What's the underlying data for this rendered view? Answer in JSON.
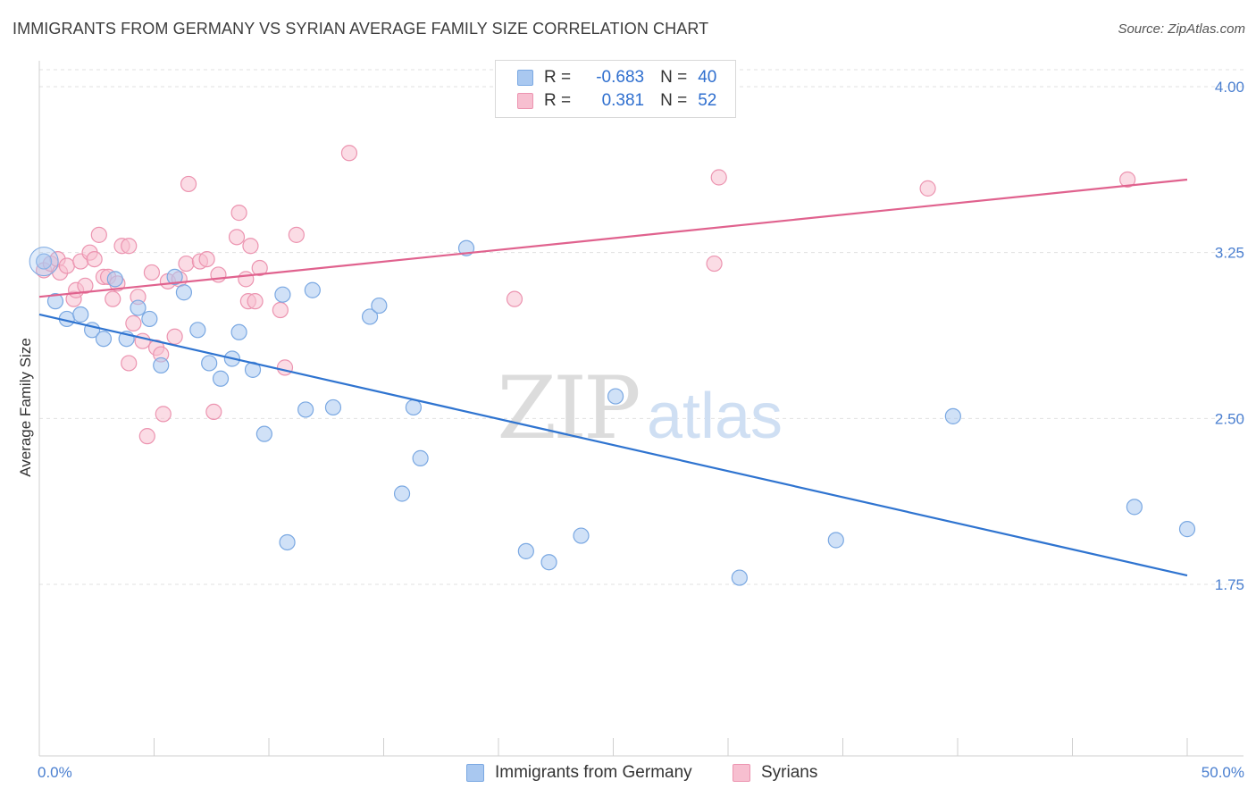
{
  "header": {
    "title": "IMMIGRANTS FROM GERMANY VS SYRIAN AVERAGE FAMILY SIZE CORRELATION CHART",
    "source": "Source: ZipAtlas.com"
  },
  "watermark": {
    "zip": "ZIP",
    "atlas": "atlas"
  },
  "legend": {
    "rows": [
      {
        "r_label": "R =",
        "r_value": "-0.683",
        "n_label": "N =",
        "n_value": "40",
        "color": "#a9c8f0",
        "border": "#7aa8e2"
      },
      {
        "r_label": "R =",
        "r_value": "0.381",
        "n_label": "N =",
        "n_value": "52",
        "color": "#f7bfd0",
        "border": "#ec94b0"
      }
    ]
  },
  "chart_data": {
    "type": "scatter",
    "title": "IMMIGRANTS FROM GERMANY VS SYRIAN AVERAGE FAMILY SIZE CORRELATION CHART",
    "ylabel": "Average Family Size",
    "xlabel": "",
    "xlim": [
      0,
      50
    ],
    "ylim": [
      1.0,
      4.12
    ],
    "x_tick_labels": [
      "0.0%",
      "50.0%"
    ],
    "y_ticks": [
      1.75,
      2.5,
      3.25,
      4.0
    ],
    "y_tick_labels": [
      "1.75",
      "2.50",
      "3.25",
      "4.00"
    ],
    "grid": "horizontal dashed",
    "legend_position": "top-center",
    "series": [
      {
        "name": "Immigrants from Germany",
        "color": "#7aa8e2",
        "fill": "#a9c8f0",
        "line_color": "#2f74d0",
        "trend": {
          "x": [
            0,
            50
          ],
          "y": [
            2.97,
            1.79
          ]
        },
        "points": [
          {
            "x": 0.2,
            "y": 3.21
          },
          {
            "x": 0.7,
            "y": 3.03
          },
          {
            "x": 1.2,
            "y": 2.95
          },
          {
            "x": 1.8,
            "y": 2.97
          },
          {
            "x": 2.3,
            "y": 2.9
          },
          {
            "x": 2.8,
            "y": 2.86
          },
          {
            "x": 3.3,
            "y": 3.13
          },
          {
            "x": 3.8,
            "y": 2.86
          },
          {
            "x": 4.3,
            "y": 3.0
          },
          {
            "x": 4.8,
            "y": 2.95
          },
          {
            "x": 5.3,
            "y": 2.74
          },
          {
            "x": 5.9,
            "y": 3.14
          },
          {
            "x": 6.3,
            "y": 3.07
          },
          {
            "x": 6.9,
            "y": 2.9
          },
          {
            "x": 7.4,
            "y": 2.75
          },
          {
            "x": 7.9,
            "y": 2.68
          },
          {
            "x": 8.4,
            "y": 2.77
          },
          {
            "x": 8.7,
            "y": 2.89
          },
          {
            "x": 9.3,
            "y": 2.72
          },
          {
            "x": 9.8,
            "y": 2.43
          },
          {
            "x": 10.6,
            "y": 3.06
          },
          {
            "x": 10.8,
            "y": 1.94
          },
          {
            "x": 11.6,
            "y": 2.54
          },
          {
            "x": 11.9,
            "y": 3.08
          },
          {
            "x": 12.8,
            "y": 2.55
          },
          {
            "x": 14.4,
            "y": 2.96
          },
          {
            "x": 14.8,
            "y": 3.01
          },
          {
            "x": 15.8,
            "y": 2.16
          },
          {
            "x": 16.3,
            "y": 2.55
          },
          {
            "x": 16.6,
            "y": 2.32
          },
          {
            "x": 18.6,
            "y": 3.27
          },
          {
            "x": 21.2,
            "y": 1.9
          },
          {
            "x": 22.2,
            "y": 1.85
          },
          {
            "x": 23.6,
            "y": 1.97
          },
          {
            "x": 25.1,
            "y": 2.6
          },
          {
            "x": 30.5,
            "y": 1.78
          },
          {
            "x": 34.7,
            "y": 1.95
          },
          {
            "x": 39.8,
            "y": 2.51
          },
          {
            "x": 47.7,
            "y": 2.1
          },
          {
            "x": 50.0,
            "y": 2.0
          }
        ]
      },
      {
        "name": "Syrians",
        "color": "#ec94b0",
        "fill": "#f7bfd0",
        "line_color": "#e0628e",
        "trend": {
          "x": [
            0,
            50
          ],
          "y": [
            3.05,
            3.58
          ]
        },
        "points": [
          {
            "x": 0.2,
            "y": 3.17
          },
          {
            "x": 0.5,
            "y": 3.2
          },
          {
            "x": 0.8,
            "y": 3.22
          },
          {
            "x": 0.9,
            "y": 3.16
          },
          {
            "x": 1.2,
            "y": 3.19
          },
          {
            "x": 1.5,
            "y": 3.04
          },
          {
            "x": 1.6,
            "y": 3.08
          },
          {
            "x": 1.8,
            "y": 3.21
          },
          {
            "x": 2.0,
            "y": 3.1
          },
          {
            "x": 2.2,
            "y": 3.25
          },
          {
            "x": 2.4,
            "y": 3.22
          },
          {
            "x": 2.6,
            "y": 3.33
          },
          {
            "x": 2.8,
            "y": 3.14
          },
          {
            "x": 3.0,
            "y": 3.14
          },
          {
            "x": 3.2,
            "y": 3.04
          },
          {
            "x": 3.4,
            "y": 3.11
          },
          {
            "x": 3.6,
            "y": 3.28
          },
          {
            "x": 3.9,
            "y": 3.28
          },
          {
            "x": 3.9,
            "y": 2.75
          },
          {
            "x": 4.1,
            "y": 2.93
          },
          {
            "x": 4.3,
            "y": 3.05
          },
          {
            "x": 4.5,
            "y": 2.85
          },
          {
            "x": 4.7,
            "y": 2.42
          },
          {
            "x": 4.9,
            "y": 3.16
          },
          {
            "x": 5.1,
            "y": 2.82
          },
          {
            "x": 5.3,
            "y": 2.79
          },
          {
            "x": 5.4,
            "y": 2.52
          },
          {
            "x": 5.6,
            "y": 3.12
          },
          {
            "x": 5.9,
            "y": 2.87
          },
          {
            "x": 6.1,
            "y": 3.13
          },
          {
            "x": 6.4,
            "y": 3.2
          },
          {
            "x": 6.5,
            "y": 3.56
          },
          {
            "x": 7.0,
            "y": 3.21
          },
          {
            "x": 7.3,
            "y": 3.22
          },
          {
            "x": 7.6,
            "y": 2.53
          },
          {
            "x": 7.8,
            "y": 3.15
          },
          {
            "x": 8.6,
            "y": 3.32
          },
          {
            "x": 8.7,
            "y": 3.43
          },
          {
            "x": 9.0,
            "y": 3.13
          },
          {
            "x": 9.1,
            "y": 3.03
          },
          {
            "x": 9.2,
            "y": 3.28
          },
          {
            "x": 9.4,
            "y": 3.03
          },
          {
            "x": 9.6,
            "y": 3.18
          },
          {
            "x": 10.5,
            "y": 2.99
          },
          {
            "x": 10.7,
            "y": 2.73
          },
          {
            "x": 11.2,
            "y": 3.33
          },
          {
            "x": 13.5,
            "y": 3.7
          },
          {
            "x": 20.7,
            "y": 3.04
          },
          {
            "x": 29.4,
            "y": 3.2
          },
          {
            "x": 29.6,
            "y": 3.59
          },
          {
            "x": 38.7,
            "y": 3.54
          },
          {
            "x": 47.4,
            "y": 3.58
          }
        ]
      }
    ]
  }
}
